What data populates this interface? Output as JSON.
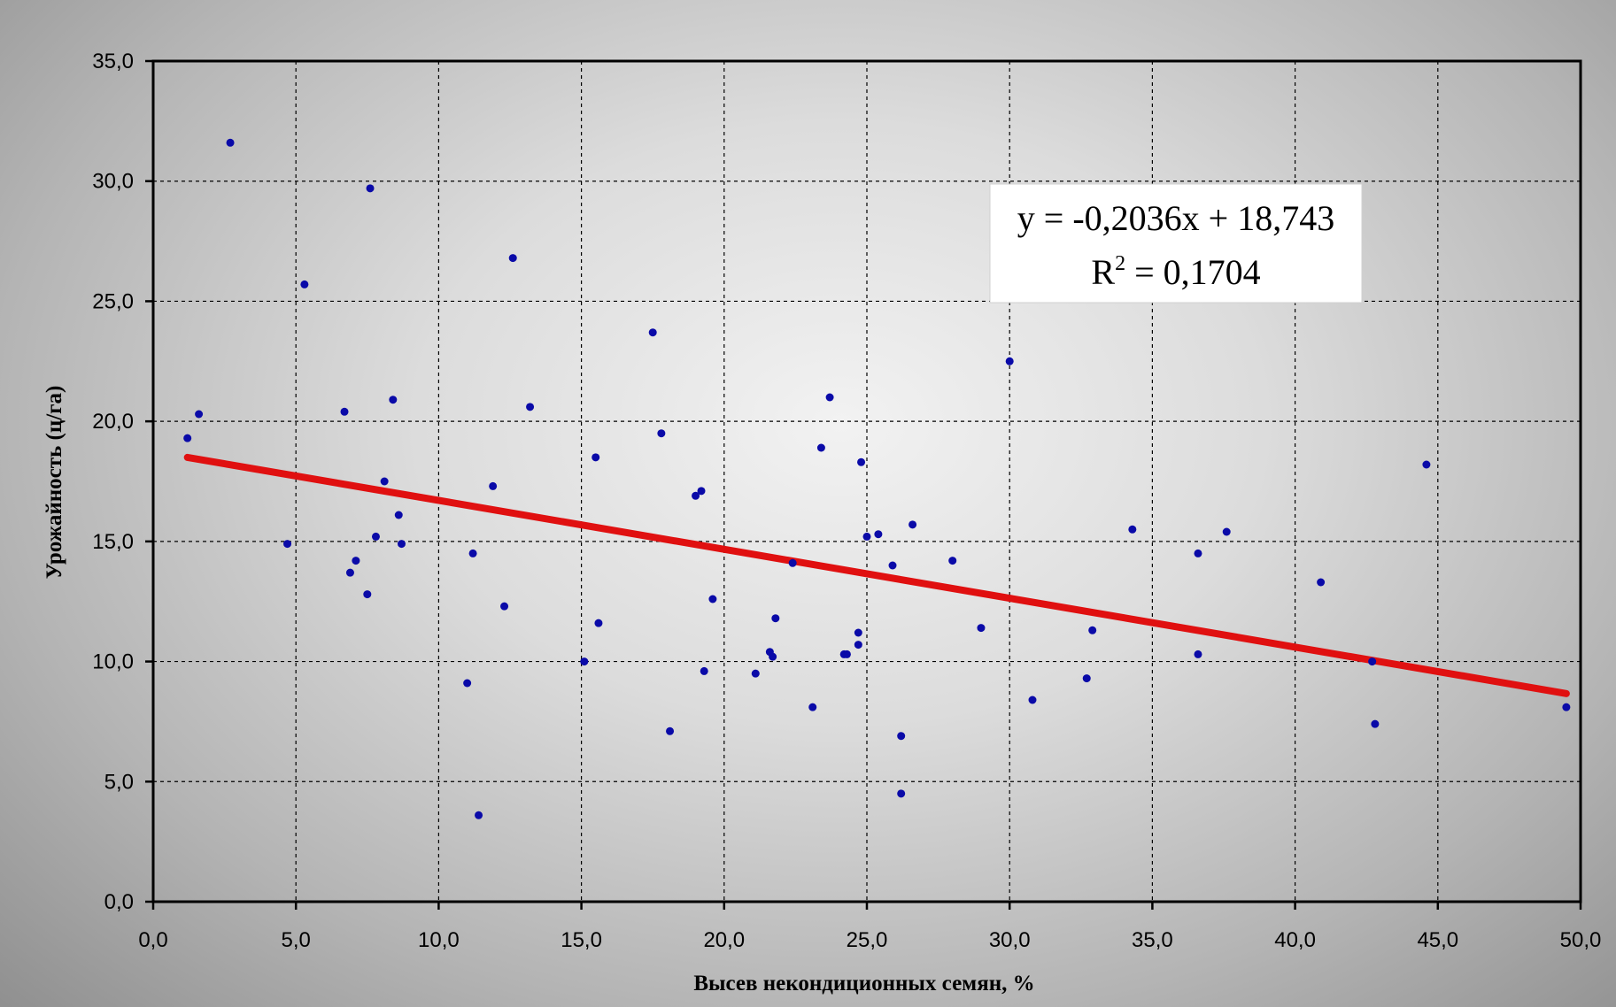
{
  "chart_data": {
    "type": "scatter",
    "title": "",
    "xlabel": "Высев некондиционных семян, %",
    "ylabel": "Урожайность (ц/га)",
    "xlim": [
      0,
      50
    ],
    "ylim": [
      0,
      35
    ],
    "x_ticks": [
      "0,0",
      "5,0",
      "10,0",
      "15,0",
      "20,0",
      "25,0",
      "30,0",
      "35,0",
      "40,0",
      "45,0",
      "50,0"
    ],
    "y_ticks": [
      "0,0",
      "5,0",
      "10,0",
      "15,0",
      "20,0",
      "25,0",
      "30,0",
      "35,0"
    ],
    "grid": true,
    "legend": "none",
    "marker_color": "#0a0aa8",
    "trend_color": "#e01010",
    "trendline": {
      "slope": -0.2036,
      "intercept": 18.743,
      "x_range": [
        1.2,
        49.5
      ],
      "equation": "y = -0,2036x + 18,743",
      "r2_label": "R",
      "r2_exp": "2",
      "r2_value": " = 0,1704"
    },
    "points": [
      [
        1.2,
        19.3
      ],
      [
        1.6,
        20.3
      ],
      [
        2.7,
        31.6
      ],
      [
        4.7,
        14.9
      ],
      [
        5.3,
        25.7
      ],
      [
        6.7,
        20.4
      ],
      [
        6.9,
        13.7
      ],
      [
        7.1,
        14.2
      ],
      [
        7.5,
        12.8
      ],
      [
        7.6,
        29.7
      ],
      [
        7.8,
        15.2
      ],
      [
        8.1,
        17.5
      ],
      [
        8.4,
        20.9
      ],
      [
        8.6,
        16.1
      ],
      [
        8.7,
        14.9
      ],
      [
        11.0,
        9.1
      ],
      [
        11.2,
        14.5
      ],
      [
        11.4,
        3.6
      ],
      [
        11.9,
        17.3
      ],
      [
        12.3,
        12.3
      ],
      [
        12.6,
        26.8
      ],
      [
        13.2,
        20.6
      ],
      [
        15.1,
        10.0
      ],
      [
        15.5,
        18.5
      ],
      [
        15.6,
        11.6
      ],
      [
        17.5,
        23.7
      ],
      [
        17.8,
        19.5
      ],
      [
        18.1,
        7.1
      ],
      [
        19.0,
        16.9
      ],
      [
        19.2,
        17.1
      ],
      [
        19.3,
        9.6
      ],
      [
        19.6,
        12.6
      ],
      [
        21.1,
        9.5
      ],
      [
        21.6,
        10.4
      ],
      [
        21.7,
        10.2
      ],
      [
        21.8,
        11.8
      ],
      [
        22.4,
        14.1
      ],
      [
        23.1,
        8.1
      ],
      [
        23.4,
        18.9
      ],
      [
        23.7,
        21.0
      ],
      [
        24.2,
        10.3
      ],
      [
        24.3,
        10.3
      ],
      [
        24.7,
        11.2
      ],
      [
        24.7,
        10.7
      ],
      [
        24.8,
        18.3
      ],
      [
        25.0,
        15.2
      ],
      [
        25.4,
        15.3
      ],
      [
        25.9,
        14.0
      ],
      [
        26.2,
        6.9
      ],
      [
        26.2,
        4.5
      ],
      [
        26.6,
        15.7
      ],
      [
        28.0,
        14.2
      ],
      [
        29.0,
        11.4
      ],
      [
        30.0,
        22.5
      ],
      [
        30.8,
        8.4
      ],
      [
        32.7,
        9.3
      ],
      [
        32.9,
        11.3
      ],
      [
        34.3,
        15.5
      ],
      [
        36.6,
        14.5
      ],
      [
        36.6,
        10.3
      ],
      [
        37.6,
        15.4
      ],
      [
        40.9,
        13.3
      ],
      [
        42.7,
        10.0
      ],
      [
        42.8,
        7.4
      ],
      [
        44.6,
        18.2
      ],
      [
        49.5,
        8.1
      ]
    ]
  }
}
